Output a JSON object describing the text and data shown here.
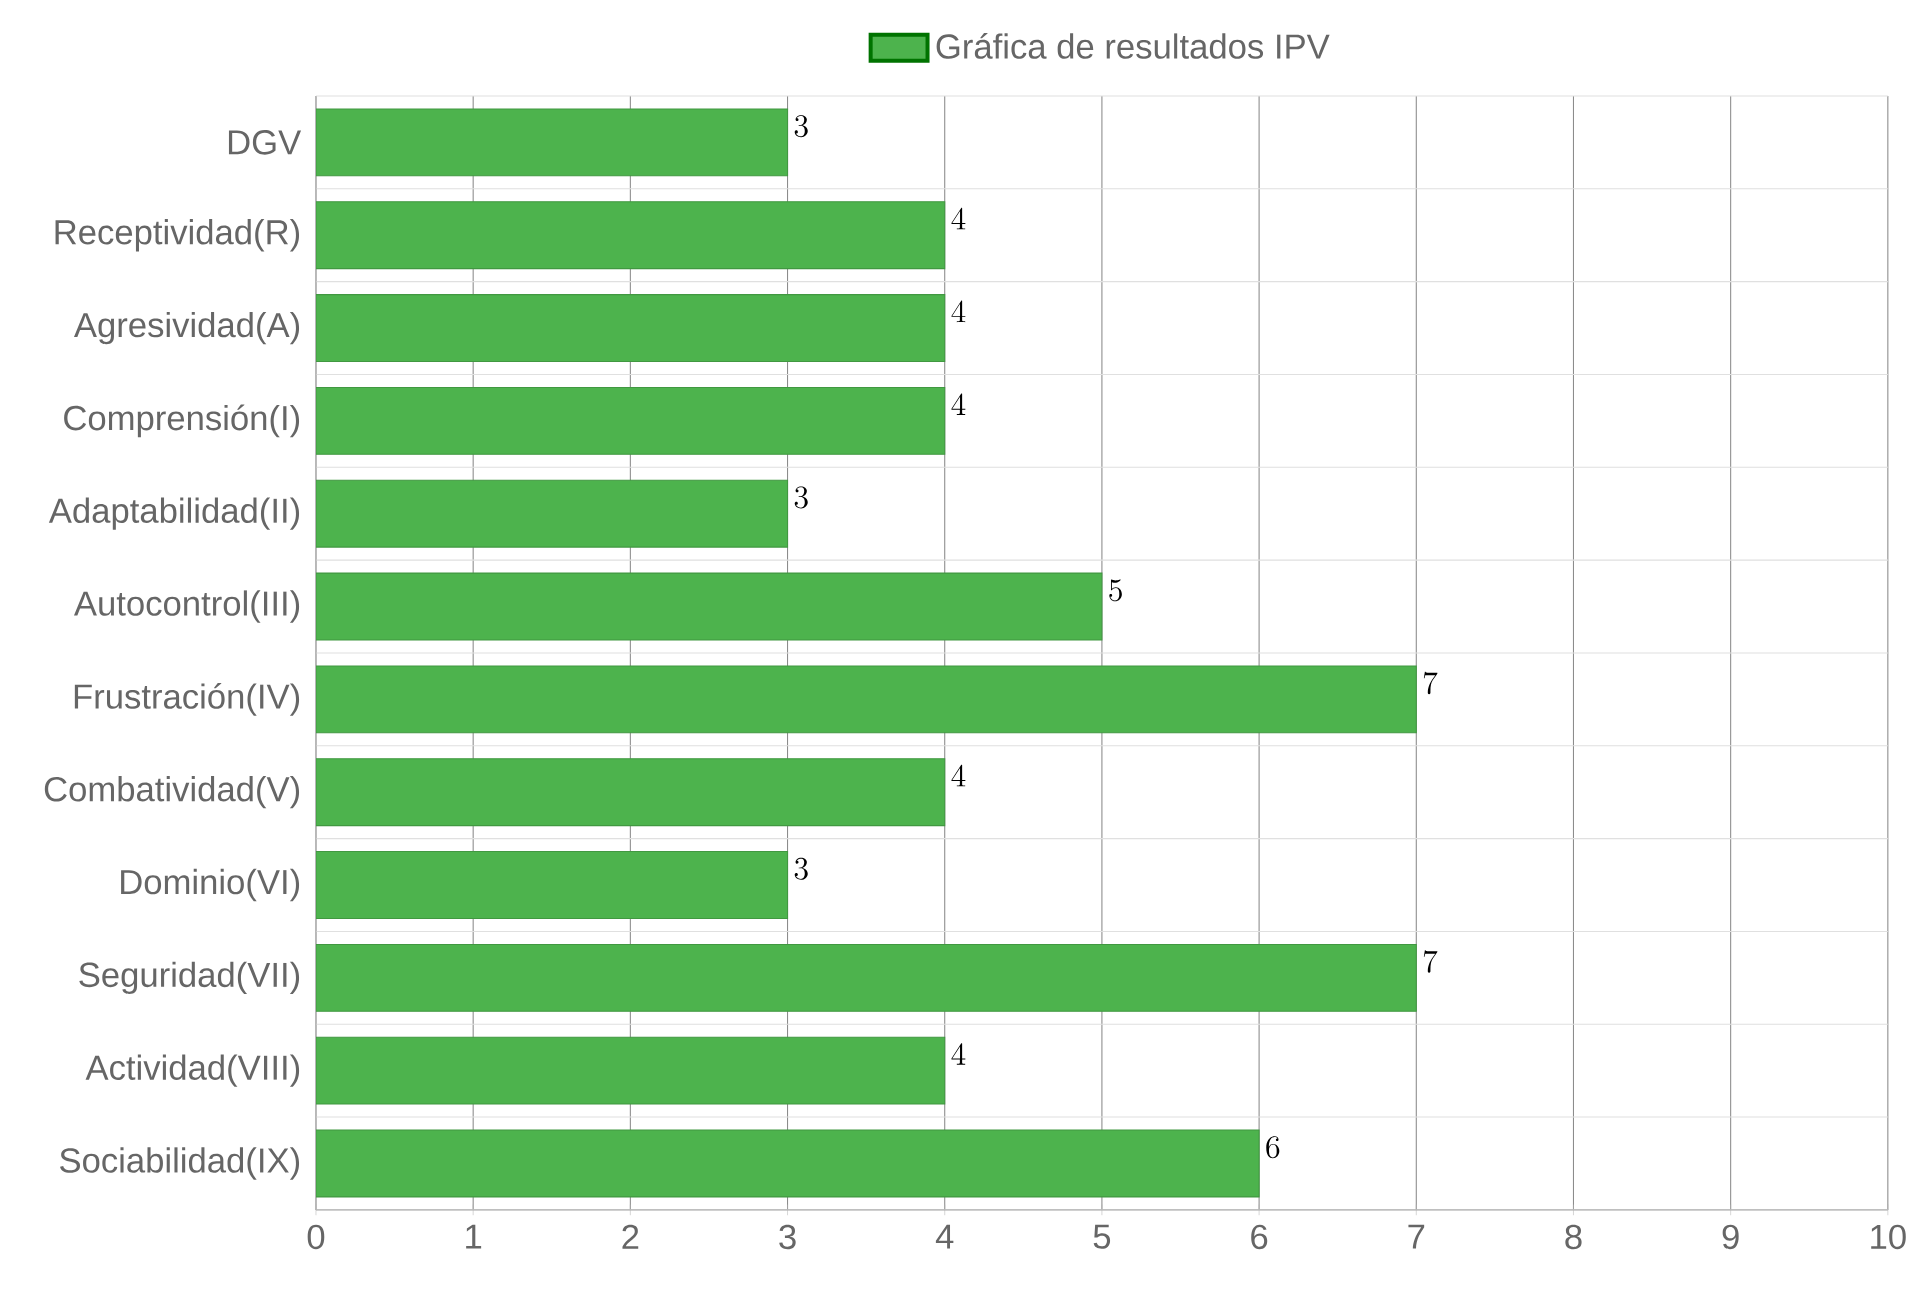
{
  "chart_data": {
    "type": "bar",
    "orientation": "horizontal",
    "categories": [
      "DGV",
      "Receptividad(R)",
      "Agresividad(A)",
      "Comprensión(I)",
      "Adaptabilidad(II)",
      "Autocontrol(III)",
      "Frustración(IV)",
      "Combatividad(V)",
      "Dominio(VI)",
      "Seguridad(VII)",
      "Actividad(VIII)",
      "Sociabilidad(IX)"
    ],
    "series": [
      {
        "name": "Gráfica de resultados IPV",
        "color": "#4db34d",
        "values": [
          3,
          4,
          4,
          4,
          3,
          5,
          7,
          4,
          3,
          7,
          4,
          6
        ]
      }
    ],
    "xlim": [
      0,
      10
    ],
    "xticks": [
      0,
      1,
      2,
      3,
      4,
      5,
      6,
      7,
      8,
      9,
      10
    ],
    "grid": true,
    "legend": "top",
    "data_labels": true
  }
}
